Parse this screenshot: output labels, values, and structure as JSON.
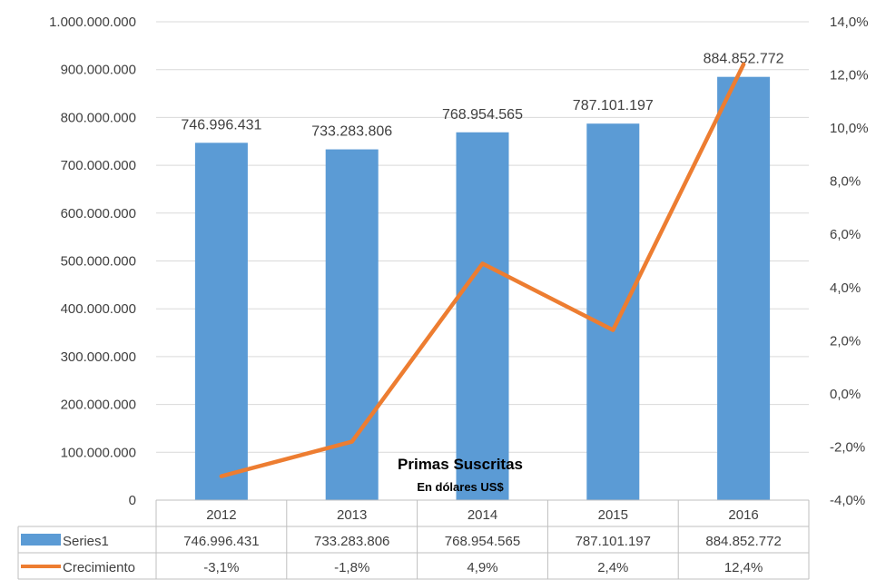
{
  "chart_data": {
    "type": "bar",
    "title": "Primas Suscritas",
    "subtitle": "En dólares US$",
    "categories": [
      "2012",
      "2013",
      "2014",
      "2015",
      "2016"
    ],
    "series": [
      {
        "name": "Series1",
        "type": "bar",
        "axis": "left",
        "color": "#5B9BD5",
        "values": [
          746996431,
          733283806,
          768954565,
          787101197,
          884852772
        ],
        "labels": [
          "746.996.431",
          "733.283.806",
          "768.954.565",
          "787.101.197",
          "884.852.772"
        ]
      },
      {
        "name": "Crecimiento",
        "type": "line",
        "axis": "right",
        "color": "#ED7D31",
        "values": [
          -3.1,
          -1.8,
          4.9,
          2.4,
          12.4
        ],
        "labels": [
          "-3,1%",
          "-1,8%",
          "4,9%",
          "2,4%",
          "12,4%"
        ]
      }
    ],
    "y_left": {
      "range": [
        0,
        1000000000
      ],
      "ticks": [
        "0",
        "100.000.000",
        "200.000.000",
        "300.000.000",
        "400.000.000",
        "500.000.000",
        "600.000.000",
        "700.000.000",
        "800.000.000",
        "900.000.000",
        "1.000.000.000"
      ]
    },
    "y_right": {
      "range": [
        -4,
        14
      ],
      "ticks": [
        "-4,0%",
        "-2,0%",
        "0,0%",
        "2,0%",
        "4,0%",
        "6,0%",
        "8,0%",
        "10,0%",
        "12,0%",
        "14,0%"
      ]
    },
    "grid": true,
    "legend": "data-table"
  }
}
